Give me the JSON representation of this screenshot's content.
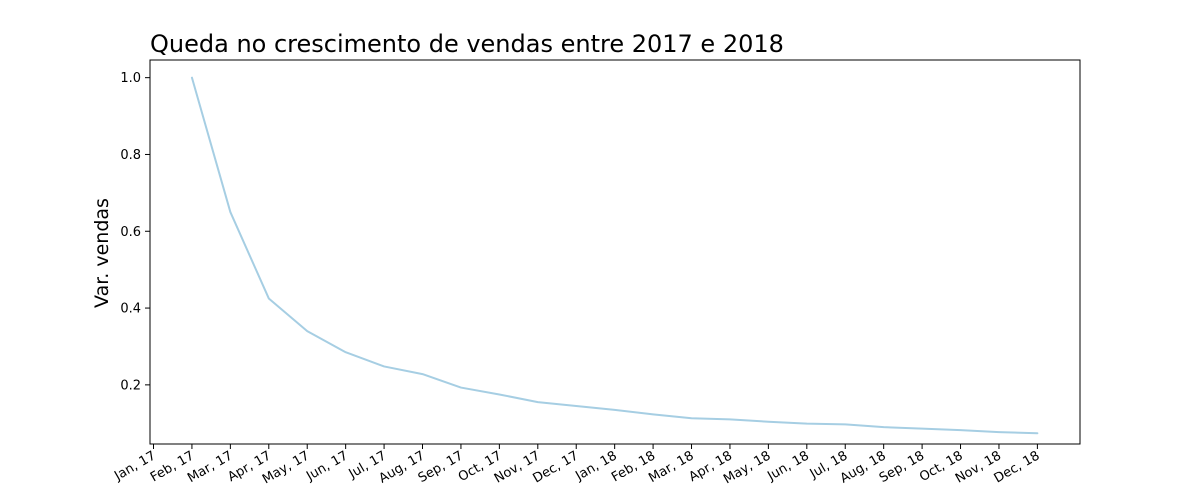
{
  "chart_data": {
    "type": "line",
    "title": "Queda no crescimento de vendas entre 2017 e 2018",
    "xlabel": "",
    "ylabel": "Var. vendas",
    "x_ticks": [
      "Jan, 17",
      "Feb, 17",
      "Mar, 17",
      "Apr, 17",
      "May, 17",
      "Jun, 17",
      "Jul, 17",
      "Aug, 17",
      "Sep, 17",
      "Oct, 17",
      "Nov, 17",
      "Dec, 17",
      "Jan, 18",
      "Feb, 18",
      "Mar, 18",
      "Apr, 18",
      "May, 18",
      "Jun, 18",
      "Jul, 18",
      "Aug, 18",
      "Sep, 18",
      "Oct, 18",
      "Nov, 18",
      "Dec, 18"
    ],
    "y_ticks": [
      "0.2",
      "0.4",
      "0.6",
      "0.8",
      "1.0"
    ],
    "ylim": [
      0.046,
      1.046
    ],
    "grid": false,
    "color": "#a6cee3",
    "series": [
      {
        "x": [
          "Feb, 17",
          "Mar, 17",
          "Apr, 17",
          "May, 17",
          "Jun, 17",
          "Jul, 17",
          "Aug, 17",
          "Sep, 17",
          "Oct, 17",
          "Nov, 17",
          "Dec, 17",
          "Jan, 18",
          "Feb, 18",
          "Mar, 18",
          "Apr, 18",
          "May, 18",
          "Jun, 18",
          "Jul, 18",
          "Aug, 18",
          "Sep, 18",
          "Oct, 18",
          "Nov, 18",
          "Dec, 18"
        ],
        "values": [
          1.0,
          0.65,
          0.425,
          0.34,
          0.285,
          0.248,
          0.228,
          0.193,
          0.175,
          0.155,
          0.145,
          0.135,
          0.123,
          0.113,
          0.11,
          0.104,
          0.099,
          0.097,
          0.09,
          0.086,
          0.082,
          0.077,
          0.074
        ]
      }
    ]
  }
}
